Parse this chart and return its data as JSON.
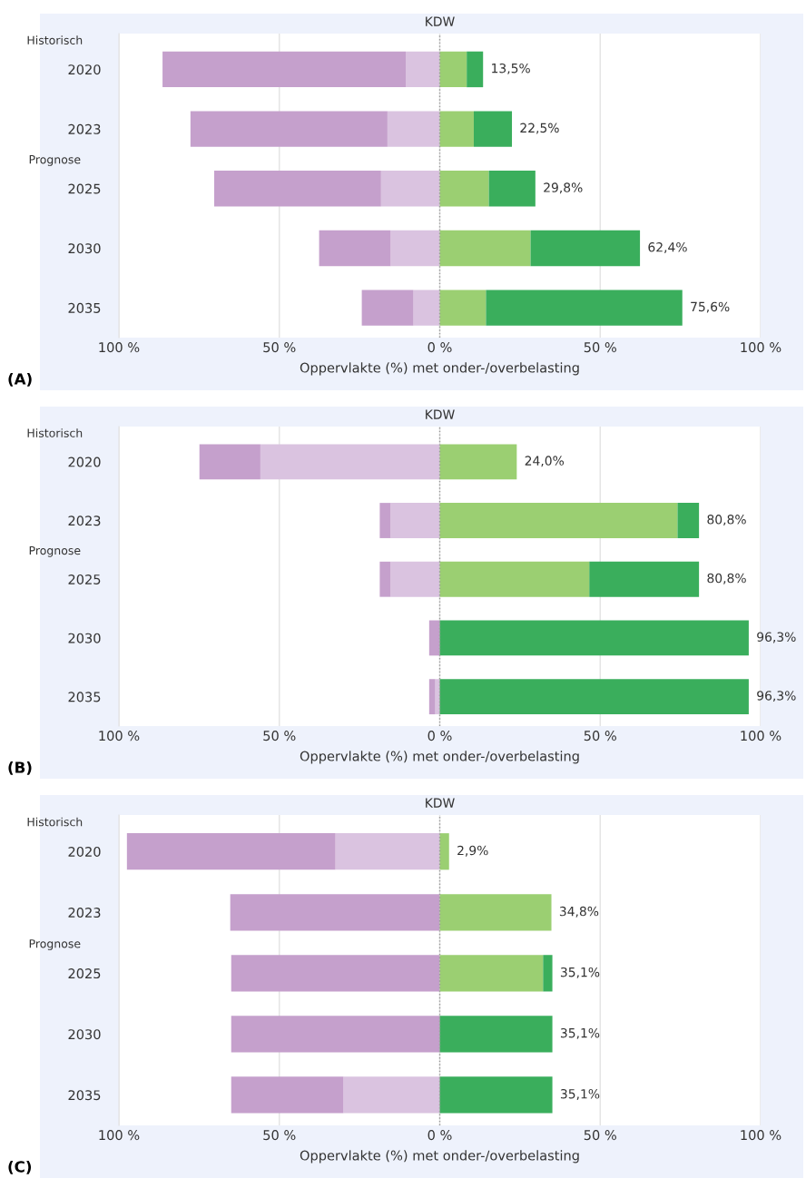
{
  "chart_data": [
    {
      "type": "bar",
      "orientation": "horizontal",
      "stacked": true,
      "title": "KDW",
      "xlabel": "Oppervlakte (%) met onder-/overbelasting",
      "categories": [
        "2020",
        "2023",
        "2025",
        "2030",
        "2035"
      ],
      "series": [
        {
          "color": "#dac3e0",
          "values": [
            -10.6,
            -16.3,
            -18.3,
            -15.3,
            -8.2
          ]
        },
        {
          "color": "#c5a0cc",
          "values": [
            -75.8,
            -61.4,
            -52.0,
            -22.3,
            -16.1
          ]
        },
        {
          "color": "#9bcf72",
          "values": [
            8.4,
            10.6,
            15.3,
            28.3,
            14.4
          ]
        },
        {
          "color": "#3aae5c",
          "values": [
            5.1,
            11.9,
            14.5,
            34.1,
            61.2
          ]
        }
      ],
      "xlim": [
        -100,
        100
      ],
      "xticks": [
        {
          "value": -100,
          "label": "100 %"
        },
        {
          "value": -50,
          "label": "50 %"
        },
        {
          "value": 0,
          "label": "0 %"
        },
        {
          "value": 50,
          "label": "50 %"
        },
        {
          "value": 100,
          "label": "100 %"
        }
      ],
      "grid": "x",
      "ref_lines": [
        {
          "axis": "x",
          "value": 0,
          "color": "#999999",
          "line_style": "dotted"
        }
      ],
      "annotations": [
        {
          "text": "13,5%",
          "x": 13.5,
          "y": "2020"
        },
        {
          "text": "22,5%",
          "x": 22.5,
          "y": "2023"
        },
        {
          "text": "29,8%",
          "x": 29.8,
          "y": "2025"
        },
        {
          "text": "62,4%",
          "x": 62.4,
          "y": "2030"
        },
        {
          "text": "75,6%",
          "x": 75.6,
          "y": "2035"
        },
        "Historisch",
        "Prognose",
        "(A)"
      ]
    },
    {
      "type": "bar",
      "orientation": "horizontal",
      "stacked": true,
      "title": "KDW",
      "xlabel": "Oppervlakte (%) met onder-/overbelasting",
      "categories": [
        "2020",
        "2023",
        "2025",
        "2030",
        "2035"
      ],
      "series": [
        {
          "color": "#dac3e0",
          "values": [
            -55.9,
            -15.4,
            -15.4,
            0,
            -1.4
          ]
        },
        {
          "color": "#c5a0cc",
          "values": [
            -19.0,
            -3.3,
            -3.3,
            -3.3,
            -1.9
          ]
        },
        {
          "color": "#9bcf72",
          "values": [
            24.0,
            74.1,
            46.6,
            0,
            0
          ]
        },
        {
          "color": "#3aae5c",
          "values": [
            0,
            6.7,
            34.2,
            96.3,
            96.3
          ]
        }
      ],
      "xlim": [
        -100,
        100
      ],
      "xticks": [
        {
          "value": -100,
          "label": "100 %"
        },
        {
          "value": -50,
          "label": "50 %"
        },
        {
          "value": 0,
          "label": "0 %"
        },
        {
          "value": 50,
          "label": "50 %"
        },
        {
          "value": 100,
          "label": "100 %"
        }
      ],
      "grid": "x",
      "ref_lines": [
        {
          "axis": "x",
          "value": 0,
          "color": "#999999",
          "line_style": "dotted"
        }
      ],
      "annotations": [
        {
          "text": "24,0%",
          "x": 24.0,
          "y": "2020"
        },
        {
          "text": "80,8%",
          "x": 80.8,
          "y": "2023"
        },
        {
          "text": "80,8%",
          "x": 80.8,
          "y": "2025"
        },
        {
          "text": "96,3%",
          "x": 96.3,
          "y": "2030"
        },
        {
          "text": "96,3%",
          "x": 96.3,
          "y": "2035"
        },
        "Historisch",
        "Prognose",
        "(B)"
      ]
    },
    {
      "type": "bar",
      "orientation": "horizontal",
      "stacked": true,
      "title": "KDW",
      "xlabel": "Oppervlakte (%) met onder-/overbelasting",
      "categories": [
        "2020",
        "2023",
        "2025",
        "2030",
        "2035"
      ],
      "series": [
        {
          "color": "#dac3e0",
          "values": [
            -32.5,
            0,
            0,
            0,
            -30.0
          ]
        },
        {
          "color": "#c5a0cc",
          "values": [
            -65.0,
            -65.3,
            -65.0,
            -65.0,
            -35.0
          ]
        },
        {
          "color": "#9bcf72",
          "values": [
            2.9,
            34.8,
            32.2,
            0,
            0
          ]
        },
        {
          "color": "#3aae5c",
          "values": [
            0,
            0,
            2.9,
            35.1,
            35.1
          ]
        }
      ],
      "xlim": [
        -100,
        100
      ],
      "xticks": [
        {
          "value": -100,
          "label": "100 %"
        },
        {
          "value": -50,
          "label": "50 %"
        },
        {
          "value": 0,
          "label": "0 %"
        },
        {
          "value": 50,
          "label": "50 %"
        },
        {
          "value": 100,
          "label": "100 %"
        }
      ],
      "grid": "x",
      "ref_lines": [
        {
          "axis": "x",
          "value": 0,
          "color": "#999999",
          "line_style": "dotted"
        }
      ],
      "annotations": [
        {
          "text": "2,9%",
          "x": 2.9,
          "y": "2020"
        },
        {
          "text": "34,8%",
          "x": 34.8,
          "y": "2023"
        },
        {
          "text": "35,1%",
          "x": 35.1,
          "y": "2025"
        },
        {
          "text": "35,1%",
          "x": 35.1,
          "y": "2030"
        },
        {
          "text": "35,1%",
          "x": 35.1,
          "y": "2035"
        },
        "Historisch",
        "Prognose",
        "(C)"
      ]
    }
  ]
}
